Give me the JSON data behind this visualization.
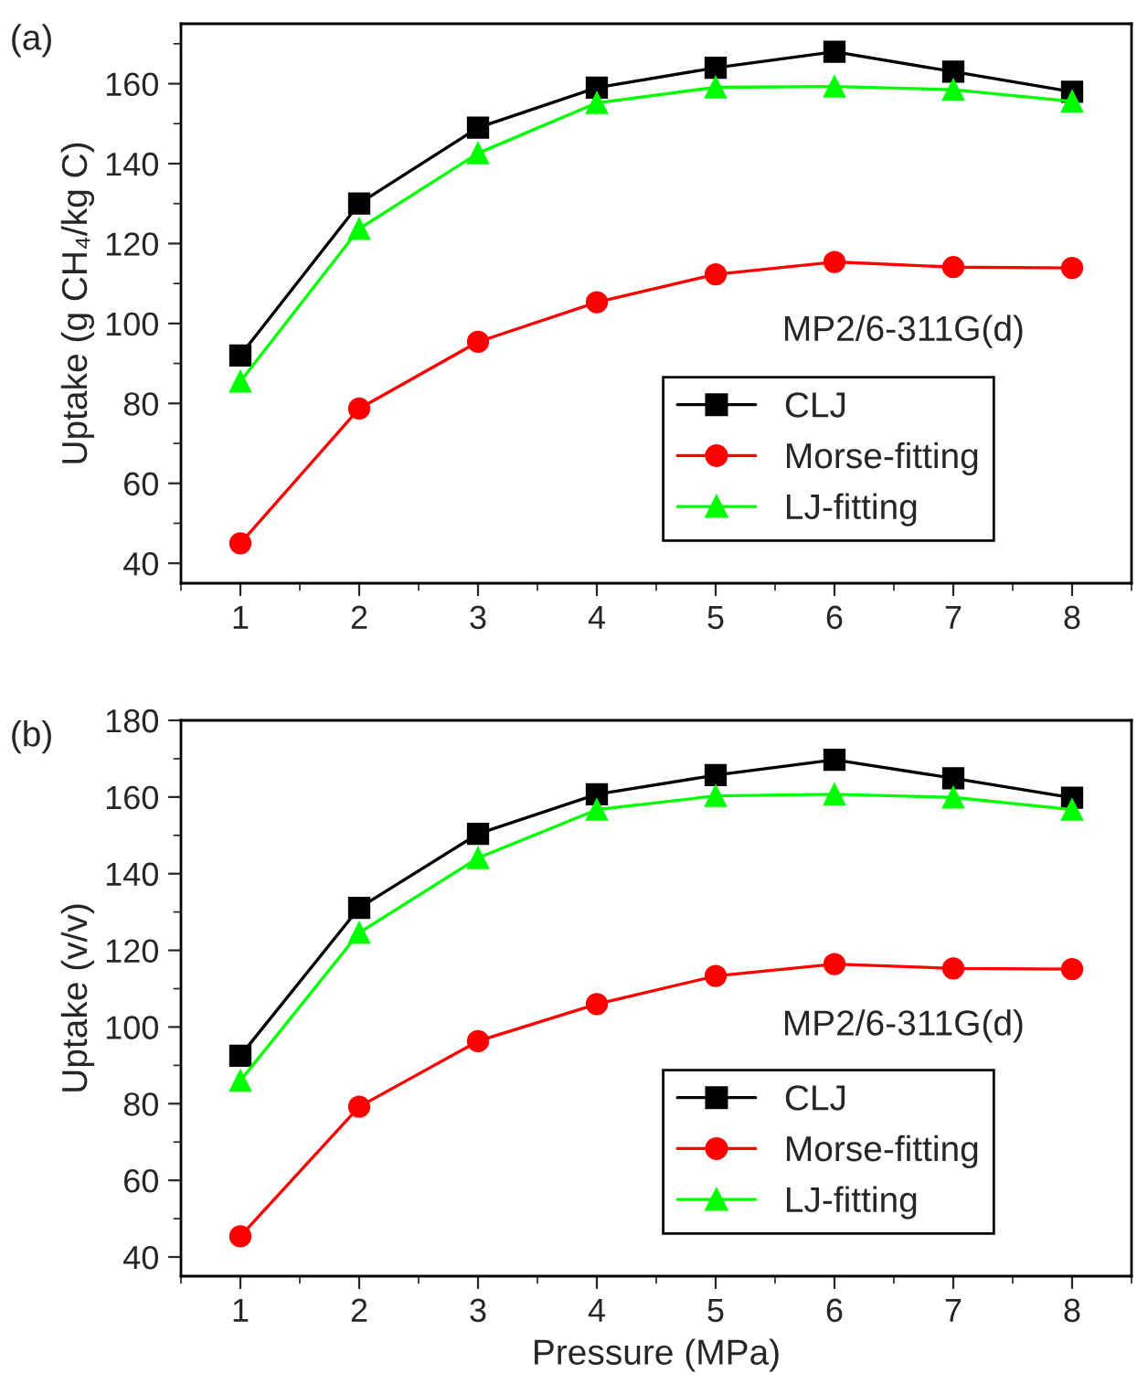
{
  "chart_data": [
    {
      "type": "line",
      "ylabel": "Uptake (g CH₄/kg C)",
      "x": [
        1,
        2,
        3,
        4,
        5,
        6,
        7,
        8
      ],
      "xlim": [
        0.5,
        8.5
      ],
      "xticks": [
        1,
        2,
        3,
        4,
        5,
        6,
        7,
        8
      ],
      "ylim": [
        35,
        175
      ],
      "yticks": [
        40,
        60,
        80,
        100,
        120,
        140,
        160
      ],
      "grid": false,
      "legend": "lower right",
      "annotations": [
        "(a)",
        "MP2/6-311G(d)"
      ],
      "series": [
        {
          "name": "CLJ",
          "color": "#000000",
          "marker": "square",
          "values": [
            92,
            130,
            149,
            159,
            164,
            168,
            163,
            158
          ]
        },
        {
          "name": "Morse-fitting",
          "color": "#ff0000",
          "marker": "circle",
          "values": [
            45,
            78.7,
            95.4,
            105.3,
            112.3,
            115.4,
            114.1,
            113.9
          ]
        },
        {
          "name": "LJ-fitting",
          "color": "#00ff00",
          "marker": "triangle",
          "values": [
            85.5,
            123.7,
            142.6,
            155.2,
            159.1,
            159.3,
            158.5,
            155.6
          ]
        }
      ]
    },
    {
      "type": "line",
      "xlabel": "Pressure (MPa)",
      "ylabel": "Uptake (v/v)",
      "x": [
        1,
        2,
        3,
        4,
        5,
        6,
        7,
        8
      ],
      "xlim": [
        0.5,
        8.5
      ],
      "xticks": [
        1,
        2,
        3,
        4,
        5,
        6,
        7,
        8
      ],
      "ylim": [
        35,
        180
      ],
      "yticks": [
        40,
        60,
        80,
        100,
        120,
        140,
        160,
        180
      ],
      "grid": false,
      "legend": "lower right",
      "annotations": [
        "(b)",
        "MP2/6-311G(d)"
      ],
      "series": [
        {
          "name": "CLJ",
          "color": "#000000",
          "marker": "square",
          "values": [
            92.5,
            131.1,
            150.4,
            160.7,
            165.7,
            169.7,
            164.9,
            159.8
          ]
        },
        {
          "name": "Morse-fitting",
          "color": "#ff0000",
          "marker": "circle",
          "values": [
            45.4,
            79.2,
            96.3,
            106,
            113.3,
            116.4,
            115.3,
            115.1
          ]
        },
        {
          "name": "LJ-fitting",
          "color": "#00ff00",
          "marker": "triangle",
          "values": [
            86,
            124.6,
            144.1,
            156.7,
            160.3,
            160.7,
            159.9,
            156.7
          ]
        }
      ]
    }
  ]
}
